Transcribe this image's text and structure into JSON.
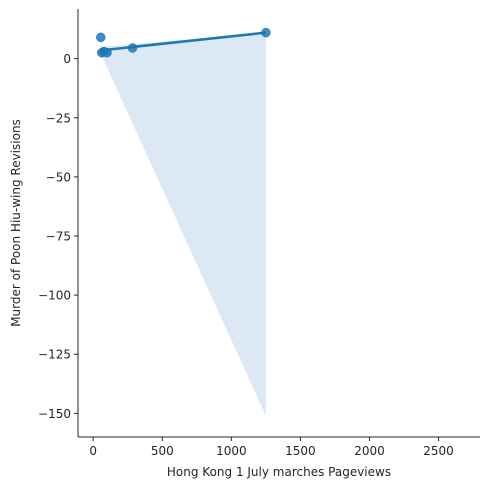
{
  "chart_data": {
    "type": "scatter",
    "xlabel": "Hong Kong 1 July marches Pageviews",
    "ylabel": "Murder of Poon Hiu-wing Revisions",
    "xlim": [
      -110,
      2800
    ],
    "ylim": [
      -160,
      21
    ],
    "xticks": [
      0,
      500,
      1000,
      1500,
      2000,
      2500
    ],
    "xtick_labels": [
      "0",
      "500",
      "1000",
      "1500",
      "2000",
      "2500"
    ],
    "yticks": [
      0,
      -25,
      -50,
      -75,
      -100,
      -125,
      -150
    ],
    "ytick_labels": [
      "0",
      "−25",
      "−50",
      "−75",
      "−100",
      "−125",
      "−150"
    ],
    "points": [
      {
        "x": 55,
        "y": 9
      },
      {
        "x": 62,
        "y": 2.5
      },
      {
        "x": 78,
        "y": 3
      },
      {
        "x": 100,
        "y": 2.5
      },
      {
        "x": 285,
        "y": 4.5
      },
      {
        "x": 1250,
        "y": 11
      }
    ],
    "regression": {
      "x0": 55,
      "y0": 3.5,
      "x1": 1250,
      "y1": 11
    },
    "confidence_band": [
      {
        "x": 55,
        "y": 5
      },
      {
        "x": 1250,
        "y": 11
      },
      {
        "x": 1250,
        "y": -151
      },
      {
        "x": 55,
        "y": 2
      }
    ],
    "colors": {
      "points": "#1f77b4",
      "line": "#1f77b4",
      "band": "#dce8f3",
      "axis": "#262626"
    },
    "grid": false,
    "spines": [
      "left",
      "bottom"
    ]
  }
}
